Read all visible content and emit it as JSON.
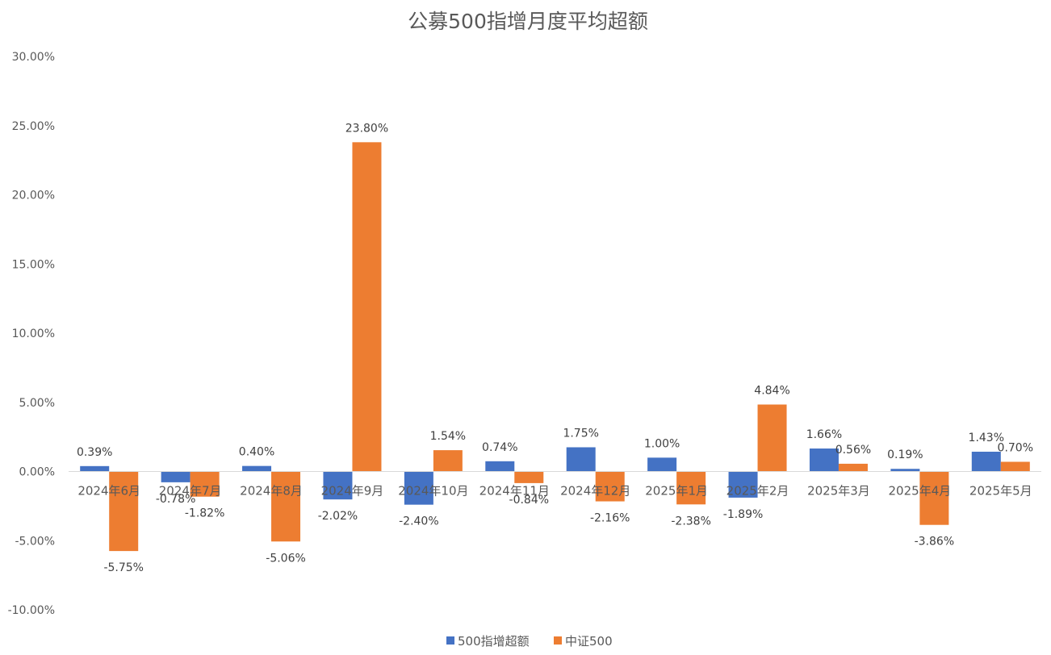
{
  "chart_data": {
    "type": "bar",
    "title": "公募500指增月度平均超额",
    "categories": [
      "2024年6月",
      "2024年7月",
      "2024年8月",
      "2024年9月",
      "2024年10月",
      "2024年11月",
      "2024年12月",
      "2025年1月",
      "2025年2月",
      "2025年3月",
      "2025年4月",
      "2025年5月"
    ],
    "series": [
      {
        "name": "500指增超额",
        "color": "#4472C4",
        "values": [
          0.39,
          -0.78,
          0.4,
          -2.02,
          -2.4,
          0.74,
          1.75,
          1.0,
          -1.89,
          1.66,
          0.19,
          1.43
        ],
        "labels": [
          "0.39%",
          "-0.78%",
          "0.40%",
          "-2.02%",
          "-2.40%",
          "0.74%",
          "1.75%",
          "1.00%",
          "-1.89%",
          "1.66%",
          "0.19%",
          "1.43%"
        ]
      },
      {
        "name": "中证500",
        "color": "#ED7D31",
        "values": [
          -5.75,
          -1.82,
          -5.06,
          23.8,
          1.54,
          -0.84,
          -2.16,
          -2.38,
          4.84,
          0.56,
          -3.86,
          0.7
        ],
        "labels": [
          "-5.75%",
          "-1.82%",
          "-5.06%",
          "23.80%",
          "1.54%",
          "-0.84%",
          "-2.16%",
          "-2.38%",
          "4.84%",
          "0.56%",
          "-3.86%",
          "0.70%"
        ]
      }
    ],
    "y_ticks": [
      30,
      25,
      20,
      15,
      10,
      5,
      0,
      -5,
      -10
    ],
    "y_tick_labels": [
      "30.00%",
      "25.00%",
      "20.00%",
      "15.00%",
      "10.00%",
      "5.00%",
      "0.00%",
      "-5.00%",
      "-10.00%"
    ],
    "ylim": [
      -10,
      30
    ],
    "xlabel": "",
    "ylabel": "",
    "grid": false,
    "legend_position": "bottom"
  }
}
